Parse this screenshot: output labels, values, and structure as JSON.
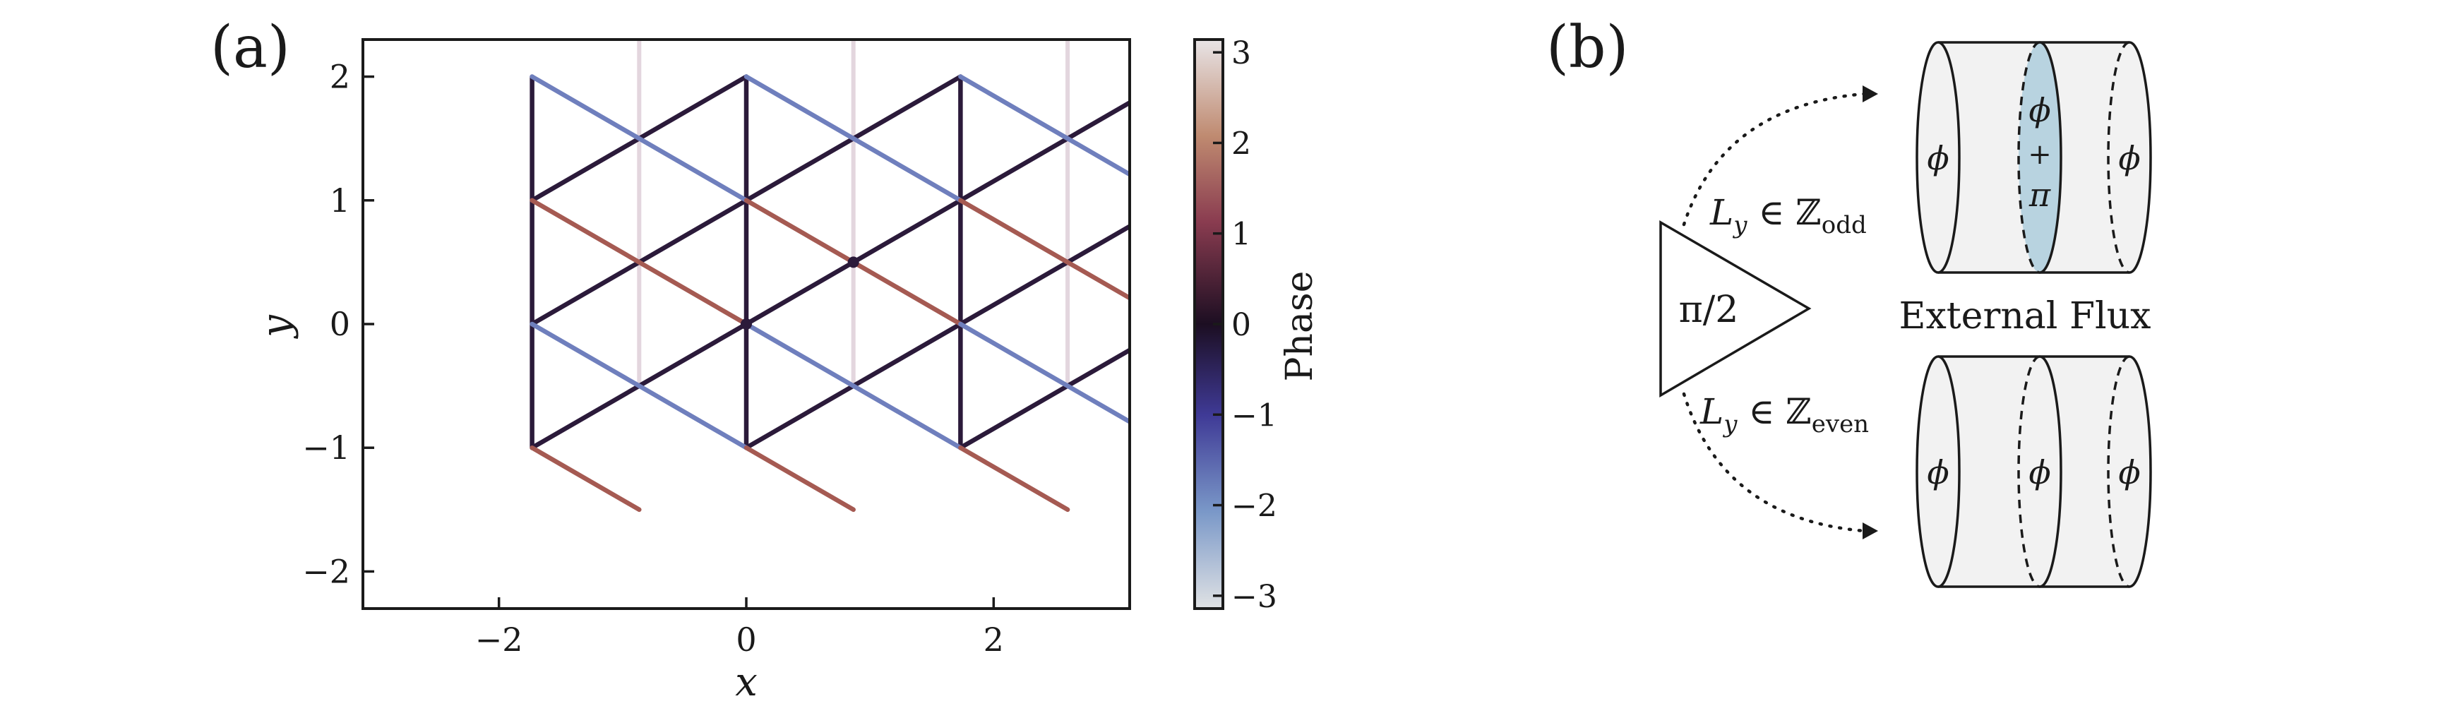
{
  "panel_a": {
    "label": "(a)",
    "xlabel": "x",
    "ylabel": "y",
    "xlim": [
      -3.1,
      3.1
    ],
    "ylim": [
      -2.3,
      2.3
    ],
    "xticks": [
      "−2",
      "0",
      "2"
    ],
    "xtick_values": [
      -2,
      0,
      2
    ],
    "yticks": [
      "2",
      "1",
      "0",
      "−1",
      "−2"
    ],
    "ytick_values": [
      2,
      1,
      0,
      -1,
      -2
    ],
    "colorbar": {
      "label": "Phase",
      "range": [
        -3.14159,
        3.14159
      ],
      "ticks": [
        "3",
        "2",
        "1",
        "0",
        "−1",
        "−2",
        "−3"
      ],
      "tick_values": [
        3,
        2,
        1,
        0,
        -1,
        -2,
        -3
      ]
    },
    "colors": {
      "phase_0": "#2b1a3a",
      "phase_pos": "#a55a52",
      "phase_neg": "#6f7fbd",
      "phase_pi": "#e3d6de"
    },
    "markers": [
      [
        0,
        0
      ],
      [
        0.866,
        0.5
      ]
    ]
  },
  "panel_b": {
    "label": "(b)",
    "triangle_label": "π/2",
    "upper_condition": "L_y ∈ ℤ_odd",
    "lower_condition": "L_y ∈ ℤ_even",
    "center_label": "External Flux",
    "top_rings": [
      "ϕ",
      "ϕ + π",
      "ϕ"
    ],
    "bottom_rings": [
      "ϕ",
      "ϕ",
      "ϕ"
    ],
    "colors": {
      "ring_fill": "#f2f2f2",
      "highlight_fill": "#b8d3e0"
    }
  }
}
